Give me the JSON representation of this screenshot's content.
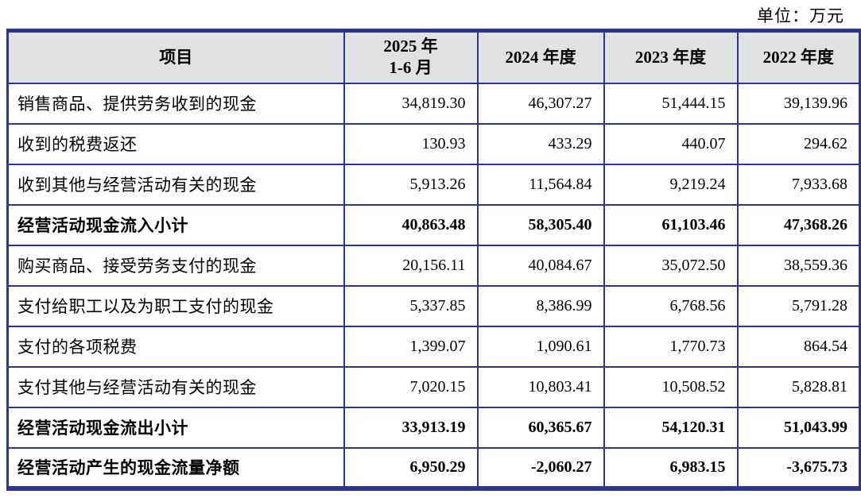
{
  "unit_label": "单位：万元",
  "colors": {
    "table_border": "#2e3590",
    "header_background": "#e0e1e3",
    "text": "#000000",
    "page_background": "#ffffff"
  },
  "table": {
    "header": {
      "item": "项目",
      "col_2025_line1": "2025 年",
      "col_2025_line2": "1-6 月",
      "col_2024": "2024 年度",
      "col_2023": "2023 年度",
      "col_2022": "2022 年度"
    },
    "rows": [
      {
        "label": "销售商品、提供劳务收到的现金",
        "bold": false,
        "values": [
          "34,819.30",
          "46,307.27",
          "51,444.15",
          "39,139.96"
        ]
      },
      {
        "label": "收到的税费返还",
        "bold": false,
        "values": [
          "130.93",
          "433.29",
          "440.07",
          "294.62"
        ]
      },
      {
        "label": "收到其他与经营活动有关的现金",
        "bold": false,
        "values": [
          "5,913.26",
          "11,564.84",
          "9,219.24",
          "7,933.68"
        ]
      },
      {
        "label": "经营活动现金流入小计",
        "bold": true,
        "values": [
          "40,863.48",
          "58,305.40",
          "61,103.46",
          "47,368.26"
        ]
      },
      {
        "label": "购买商品、接受劳务支付的现金",
        "bold": false,
        "values": [
          "20,156.11",
          "40,084.67",
          "35,072.50",
          "38,559.36"
        ]
      },
      {
        "label": "支付给职工以及为职工支付的现金",
        "bold": false,
        "values": [
          "5,337.85",
          "8,386.99",
          "6,768.56",
          "5,791.28"
        ]
      },
      {
        "label": "支付的各项税费",
        "bold": false,
        "values": [
          "1,399.07",
          "1,090.61",
          "1,770.73",
          "864.54"
        ]
      },
      {
        "label": "支付其他与经营活动有关的现金",
        "bold": false,
        "values": [
          "7,020.15",
          "10,803.41",
          "10,508.52",
          "5,828.81"
        ]
      },
      {
        "label": "经营活动现金流出小计",
        "bold": true,
        "values": [
          "33,913.19",
          "60,365.67",
          "54,120.31",
          "51,043.99"
        ]
      },
      {
        "label": "经营活动产生的现金流量净额",
        "bold": true,
        "values": [
          "6,950.29",
          "-2,060.27",
          "6,983.15",
          "-3,675.73"
        ]
      }
    ]
  }
}
